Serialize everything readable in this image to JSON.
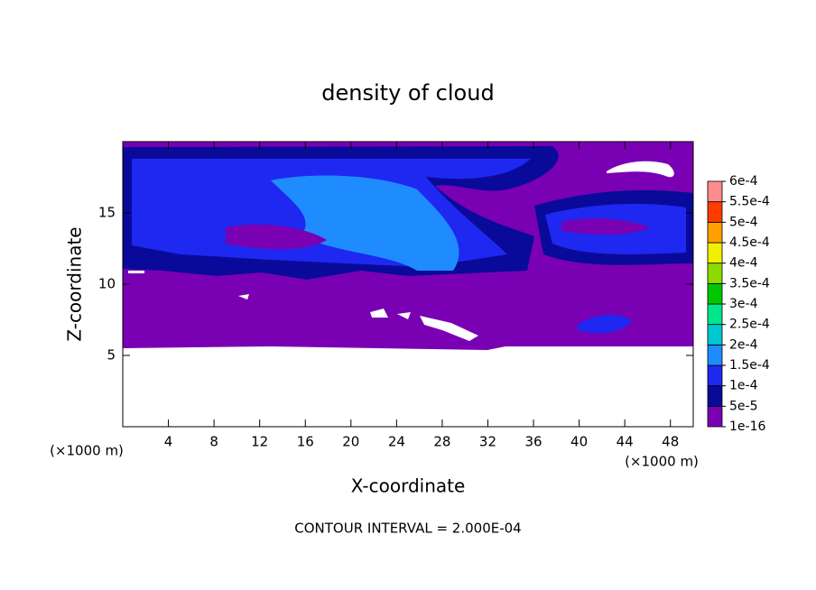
{
  "chart_data": {
    "type": "contour",
    "title": "density of cloud",
    "x_label": "X-coordinate",
    "y_label": "Z-coordinate",
    "x_unit_left": "(×1000 m)",
    "x_unit_right": "(×1000 m)",
    "footer": "CONTOUR INTERVAL = 2.000E-04",
    "xlim": [
      0,
      50
    ],
    "xticks": [
      4,
      8,
      12,
      16,
      20,
      24,
      28,
      32,
      36,
      40,
      44,
      48
    ],
    "ylim": [
      0,
      20
    ],
    "yticks": [
      5,
      10,
      15
    ],
    "colorbar": {
      "levels": [
        {
          "value": 1e-16,
          "label": "1e-16"
        },
        {
          "value": 5e-05,
          "label": "5e-5"
        },
        {
          "value": 0.0001,
          "label": "1e-4"
        },
        {
          "value": 0.00015,
          "label": "1.5e-4"
        },
        {
          "value": 0.0002,
          "label": "2e-4"
        },
        {
          "value": 0.00025,
          "label": "2.5e-4"
        },
        {
          "value": 0.0003,
          "label": "3e-4"
        },
        {
          "value": 0.00035,
          "label": "3.5e-4"
        },
        {
          "value": 0.0004,
          "label": "4e-4"
        },
        {
          "value": 0.00045,
          "label": "4.5e-4"
        },
        {
          "value": 0.0005,
          "label": "5e-4"
        },
        {
          "value": 0.00055,
          "label": "5.5e-4"
        },
        {
          "value": 0.0006,
          "label": "6e-4"
        }
      ],
      "colors": [
        "#7a00b4",
        "#0a0a9a",
        "#1e28f0",
        "#1e8cff",
        "#00c8d2",
        "#00e68c",
        "#00c800",
        "#8cdc00",
        "#f0f000",
        "#ffa000",
        "#ff3c00",
        "#ff8c8c"
      ]
    }
  }
}
